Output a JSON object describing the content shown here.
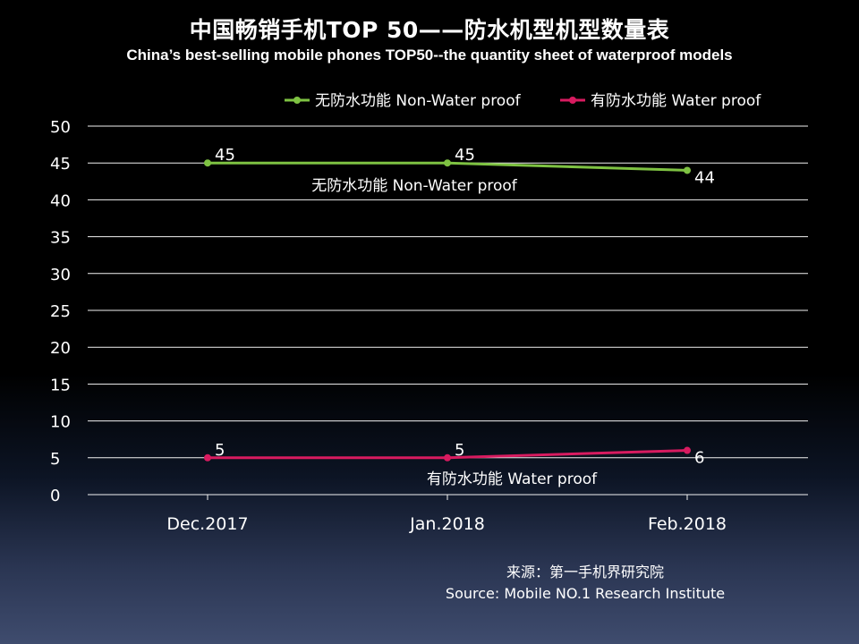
{
  "chart_data": {
    "type": "line",
    "title": "中国畅销手机TOP 50——防水机型机型数量表",
    "subtitle": "China’s best-selling mobile phones TOP50--the quantity sheet of waterproof models",
    "categories": [
      "Dec.2017",
      "Jan.2018",
      "Feb.2018"
    ],
    "series": [
      {
        "name": "无防水功能  Non-Water proof",
        "values": [
          45,
          45,
          44
        ],
        "color": "#7ec242",
        "line_label": "无防水功能   Non-Water proof"
      },
      {
        "name": "有防水功能  Water proof",
        "values": [
          5,
          5,
          6
        ],
        "color": "#d81b60",
        "line_label": "有防水功能    Water proof"
      }
    ],
    "ylim": [
      0,
      50
    ],
    "yticks": [
      0,
      5,
      10,
      15,
      20,
      25,
      30,
      35,
      40,
      45,
      50
    ],
    "grid": true,
    "legend_position": "top-right"
  },
  "source": {
    "line1": "来源：第一手机界研究院",
    "line2": "Source: Mobile NO.1 Research Institute"
  }
}
